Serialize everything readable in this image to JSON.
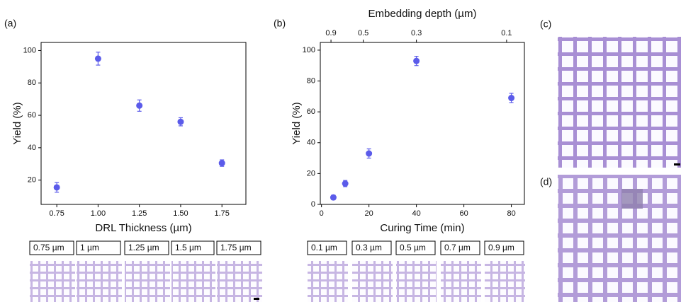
{
  "chart_data": [
    {
      "type": "scatter",
      "panel": "(a)",
      "xlabel": "DRL Thickness (µm)",
      "ylabel": "Yield (%)",
      "x": [
        0.75,
        1.0,
        1.25,
        1.5,
        1.75
      ],
      "series": [
        {
          "color": "#5b5bea",
          "values": [
            15.5,
            95,
            66,
            56,
            30.5
          ],
          "errors": [
            3,
            4,
            3.5,
            2.5,
            2
          ]
        }
      ],
      "xlim": [
        0.655,
        1.895
      ],
      "ylim": [
        5,
        105
      ],
      "xticks": [
        0.75,
        {
          "value": 1,
          "label": "1.00"
        },
        1.25,
        {
          "value": 1.5,
          "label": "1.50"
        },
        1.75
      ],
      "yticks": [
        20,
        40,
        60,
        80,
        100
      ]
    },
    {
      "type": "scatter",
      "panel": "(b)",
      "xlabel": "Curing Time (min)",
      "ylabel": "Yield (%)",
      "x2label": "Embedding depth (µm)",
      "x": [
        5,
        10,
        20,
        40,
        80
      ],
      "series": [
        {
          "color": "#5b5bea",
          "values": [
            4.5,
            13.5,
            33,
            93,
            69
          ],
          "errors": [
            1.5,
            2,
            3,
            3,
            3
          ]
        }
      ],
      "xlim": [
        -0.5,
        85.5
      ],
      "ylim": [
        0,
        105
      ],
      "xticks": [
        0,
        20,
        40,
        60,
        80
      ],
      "yticks": [
        0,
        20,
        40,
        60,
        80,
        100
      ],
      "x2lim": [
        -0.5,
        85.5
      ],
      "x2ticks": [
        {
          "value": 4,
          "label": "0.9"
        },
        {
          "value": 17.6,
          "label": "0.5"
        },
        {
          "value": 40,
          "label": "0.3"
        },
        {
          "value": 78,
          "label": "0.1"
        }
      ]
    }
  ],
  "image_panels": {
    "c": "(c)",
    "d": "(d)"
  },
  "thumbnail_labels_a": [
    "0.75 µm",
    "1 µm",
    "1.25 µm",
    "1.5 µm",
    "1.75 µm"
  ],
  "thumbnail_labels_b": [
    "0.1 µm",
    "0.3 µm",
    "0.5 µm",
    "0.7 µm",
    "0.9 µm"
  ]
}
